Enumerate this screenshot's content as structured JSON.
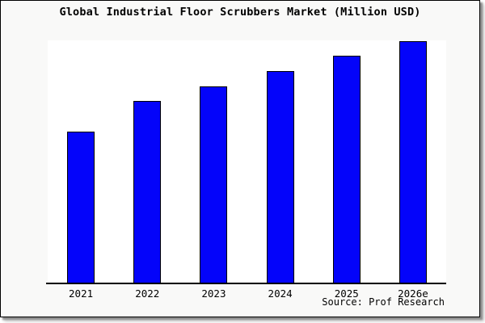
{
  "chart_data": {
    "type": "bar",
    "title": "Global Industrial Floor Scrubbers Market (Million USD)",
    "categories": [
      "2021",
      "2022",
      "2023",
      "2024",
      "2025",
      "2026e"
    ],
    "values": [
      10,
      12,
      13,
      14,
      15,
      16
    ],
    "values_note": "No y-axis scale or data labels are shown; values are relative bar heights (2026e bar = 16).",
    "ylim": [
      0,
      16.1
    ],
    "xlabel": "",
    "ylabel": "",
    "grid": false,
    "legend_position": "none",
    "bar_color": "#0404fa",
    "bar_border_color": "#000000",
    "plot_bg_color": "#ffffff",
    "canvas_bg_color": "#f9f9f8",
    "axis_color": "#000000",
    "source_text": "Source: Prof Research"
  }
}
